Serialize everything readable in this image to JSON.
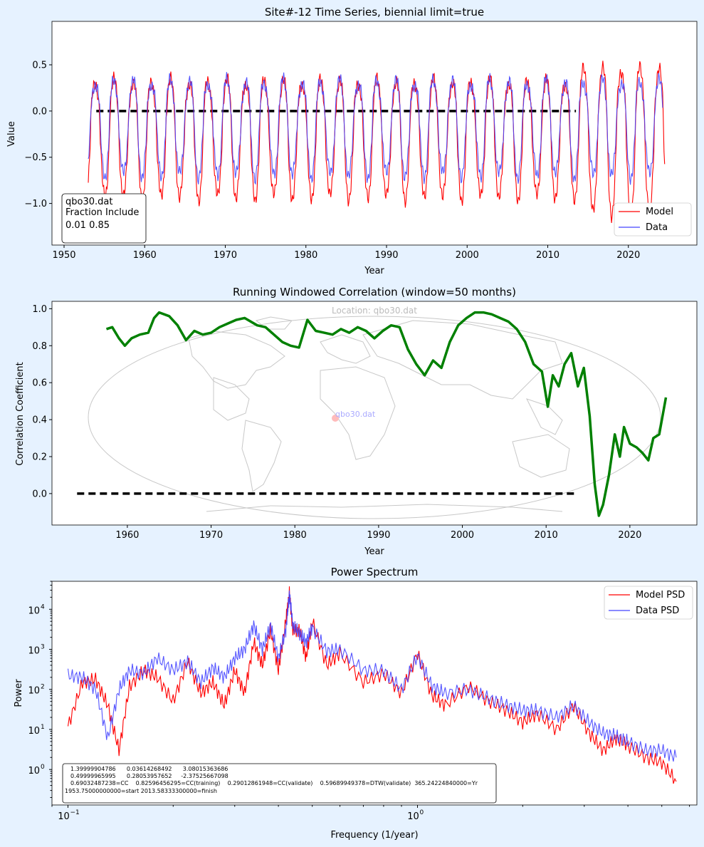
{
  "chart_data": [
    {
      "type": "line",
      "title": "Site#-12 Time Series, biennial limit=true",
      "xlabel": "Year",
      "ylabel": "Value",
      "xlim": [
        1948.5,
        2028.5
      ],
      "ylim": [
        -1.45,
        0.97
      ],
      "xticks": [
        1950,
        1960,
        1970,
        1980,
        1990,
        2000,
        2010,
        2020
      ],
      "yticks": [
        -1.0,
        -0.5,
        0.0,
        0.5
      ],
      "ytick_labels": [
        "−1.0",
        "−0.5",
        "0.0",
        "0.5"
      ],
      "annotation": [
        "qbo30.dat",
        "Fraction Include",
        "0.01 0.85"
      ],
      "legend": [
        "Model",
        "Data"
      ],
      "series": [
        {
          "name": "Model",
          "color": "#ff0000",
          "x_range": [
            1953.0,
            2024.5
          ],
          "period_years": 2.33,
          "amplitude": 0.72,
          "offset": -0.22
        },
        {
          "name": "Data",
          "color": "#4444ff",
          "x_range": [
            1953.0,
            2024.3
          ],
          "period_years": 2.33,
          "amplitude": 0.58,
          "offset": -0.12
        }
      ],
      "zero_line": {
        "x": [
          1954.0,
          2013.5
        ],
        "y": 0.0
      }
    },
    {
      "type": "line",
      "title": "Running Windowed Correlation (window=50 months)",
      "xlabel": "Year",
      "ylabel": "Correlation Coefficient",
      "xlim": [
        1951.0,
        2028.0
      ],
      "ylim": [
        -0.17,
        1.04
      ],
      "xticks": [
        1960,
        1970,
        1980,
        1990,
        2000,
        2010,
        2020
      ],
      "yticks": [
        0.0,
        0.2,
        0.4,
        0.6,
        0.8,
        1.0
      ],
      "ytick_labels": [
        "0.0",
        "0.2",
        "0.4",
        "0.6",
        "0.8",
        "1.0"
      ],
      "map_labels": {
        "location": "Location: qbo30.dat",
        "site": "qbo30.dat"
      },
      "series": [
        {
          "name": "Correlation",
          "color": "#008000",
          "x": [
            1957.5,
            1958.2,
            1959.0,
            1959.7,
            1960.5,
            1961.5,
            1962.5,
            1963.2,
            1963.8,
            1965.0,
            1966.0,
            1967.0,
            1968.0,
            1969.0,
            1970.0,
            1971.0,
            1972.0,
            1973.0,
            1974.0,
            1975.5,
            1976.5,
            1977.5,
            1978.5,
            1979.5,
            1980.5,
            1981.5,
            1982.5,
            1983.5,
            1984.5,
            1985.5,
            1986.5,
            1987.5,
            1988.5,
            1989.5,
            1990.5,
            1991.5,
            1992.5,
            1993.5,
            1994.5,
            1995.5,
            1996.5,
            1997.5,
            1998.5,
            1999.5,
            2000.5,
            2001.5,
            2002.5,
            2003.5,
            2004.5,
            2005.5,
            2006.5,
            2007.5,
            2008.5,
            2009.5,
            2010.2,
            2010.8,
            2011.5,
            2012.2,
            2013.0,
            2013.8,
            2014.5,
            2015.2,
            2015.8,
            2016.3,
            2016.8,
            2017.5,
            2018.2,
            2018.8,
            2019.3,
            2020.0,
            2020.8,
            2021.5,
            2022.2,
            2022.8,
            2023.5,
            2024.3
          ],
          "y": [
            0.89,
            0.9,
            0.84,
            0.8,
            0.84,
            0.86,
            0.87,
            0.95,
            0.98,
            0.96,
            0.91,
            0.83,
            0.88,
            0.86,
            0.87,
            0.9,
            0.92,
            0.94,
            0.95,
            0.91,
            0.9,
            0.86,
            0.82,
            0.8,
            0.79,
            0.94,
            0.88,
            0.87,
            0.86,
            0.89,
            0.87,
            0.9,
            0.88,
            0.84,
            0.88,
            0.91,
            0.9,
            0.78,
            0.7,
            0.64,
            0.72,
            0.68,
            0.82,
            0.91,
            0.95,
            0.98,
            0.98,
            0.97,
            0.95,
            0.93,
            0.89,
            0.82,
            0.7,
            0.66,
            0.47,
            0.64,
            0.58,
            0.7,
            0.76,
            0.58,
            0.68,
            0.42,
            0.05,
            -0.12,
            -0.06,
            0.1,
            0.32,
            0.2,
            0.36,
            0.27,
            0.25,
            0.22,
            0.18,
            0.3,
            0.32,
            0.52
          ]
        }
      ],
      "zero_line": {
        "x": [
          1954.0,
          2013.5
        ],
        "y": 0.0
      }
    },
    {
      "type": "line",
      "title": "Power Spectrum",
      "xlabel": "Frequency (1/year)",
      "ylabel": "Power",
      "xscale": "log",
      "yscale": "log",
      "xlim": [
        0.09,
        6.3
      ],
      "ylim": [
        0.13,
        50000
      ],
      "xticks": [
        0.1,
        1.0
      ],
      "xtick_labels": [
        "10",
        "10"
      ],
      "xtick_exps": [
        "−1",
        "0"
      ],
      "yticks": [
        1,
        10,
        100,
        1000,
        10000
      ],
      "ytick_exps": [
        "0",
        "1",
        "2",
        "3",
        "4"
      ],
      "ytick_base": "10",
      "legend": [
        "Model PSD",
        "Data PSD"
      ],
      "series": [
        {
          "name": "Model PSD",
          "color": "#ff0000",
          "x": [
            0.1,
            0.11,
            0.12,
            0.13,
            0.14,
            0.15,
            0.165,
            0.18,
            0.2,
            0.22,
            0.24,
            0.26,
            0.28,
            0.3,
            0.32,
            0.34,
            0.36,
            0.38,
            0.4,
            0.42,
            0.43,
            0.44,
            0.46,
            0.48,
            0.5,
            0.55,
            0.6,
            0.7,
            0.8,
            0.9,
            1.0,
            1.1,
            1.2,
            1.4,
            1.6,
            1.8,
            2.0,
            2.2,
            2.5,
            2.8,
            3.1,
            3.4,
            3.7,
            4.0,
            4.5,
            5.0,
            5.5
          ],
          "y": [
            12,
            150,
            180,
            40,
            3,
            120,
            300,
            200,
            50,
            500,
            80,
            150,
            40,
            300,
            80,
            1500,
            400,
            3000,
            300,
            5000,
            25000,
            3000,
            3000,
            600,
            5000,
            400,
            800,
            150,
            250,
            80,
            800,
            70,
            40,
            120,
            50,
            30,
            15,
            25,
            10,
            40,
            8,
            3,
            6,
            4,
            2,
            1.5,
            0.5
          ]
        },
        {
          "name": "Data PSD",
          "color": "#4444ff",
          "x": [
            0.1,
            0.11,
            0.12,
            0.13,
            0.14,
            0.15,
            0.165,
            0.18,
            0.2,
            0.22,
            0.24,
            0.26,
            0.28,
            0.3,
            0.32,
            0.34,
            0.36,
            0.38,
            0.4,
            0.42,
            0.43,
            0.44,
            0.46,
            0.48,
            0.5,
            0.55,
            0.6,
            0.7,
            0.8,
            0.9,
            1.0,
            1.1,
            1.2,
            1.4,
            1.6,
            1.8,
            2.0,
            2.2,
            2.5,
            2.8,
            3.1,
            3.4,
            3.7,
            4.0,
            4.5,
            5.0,
            5.5
          ],
          "y": [
            220,
            200,
            100,
            6,
            100,
            300,
            250,
            600,
            300,
            500,
            150,
            350,
            200,
            600,
            1000,
            4000,
            1000,
            4000,
            600,
            3000,
            24000,
            4000,
            2500,
            1500,
            3500,
            900,
            1000,
            300,
            300,
            100,
            700,
            120,
            80,
            100,
            60,
            40,
            30,
            30,
            20,
            40,
            15,
            8,
            7,
            5,
            3,
            3,
            2
          ]
        }
      ],
      "stats_lines": [
        "1.39999904786      0.03614268492      3.08015363686",
        "0.49999965995      0.28053957652     -2.37525667098",
        "0.69032487238=CC    0.82596456295=CC(training)    0.29012861948=CC(validate)    0.59689949378=DTW(validate)  365.24224840000=Yr",
        "1953.75000000000=start 2013.58333300000=finish"
      ]
    }
  ]
}
